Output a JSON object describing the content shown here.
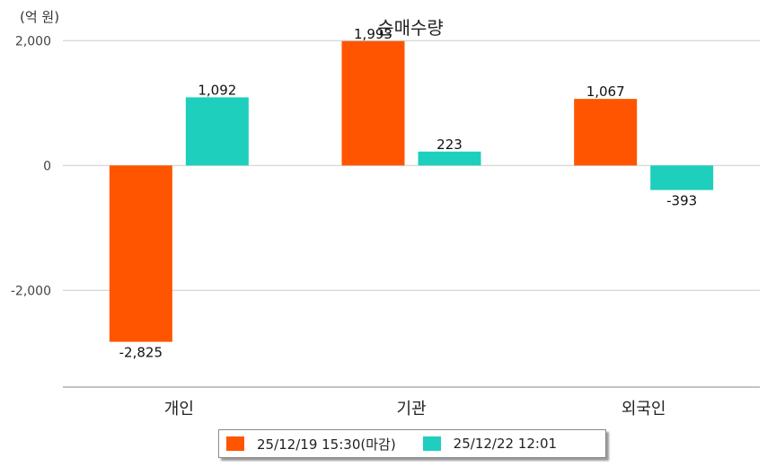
{
  "chart_data": {
    "type": "bar",
    "title": "순매수량",
    "unit_label": "(억 원)",
    "categories": [
      "개인",
      "기관",
      "외국인"
    ],
    "series": [
      {
        "name": "25/12/19 15:30(마감)",
        "color": "#ff5500",
        "values": [
          -2825,
          1993,
          1067
        ]
      },
      {
        "name": "25/12/22 12:01",
        "color": "#1ecfbd",
        "values": [
          1092,
          223,
          -393
        ]
      }
    ],
    "data_labels": [
      [
        "-2,825",
        "1,993",
        "1,067"
      ],
      [
        "1,092",
        "223",
        "-393"
      ]
    ],
    "yticks": [
      2000,
      0,
      -2000
    ],
    "ytick_labels": [
      "2,000",
      "0",
      "-2,000"
    ],
    "ylim": [
      -3550,
      2450
    ],
    "grid": true,
    "legend_position": "bottom"
  }
}
